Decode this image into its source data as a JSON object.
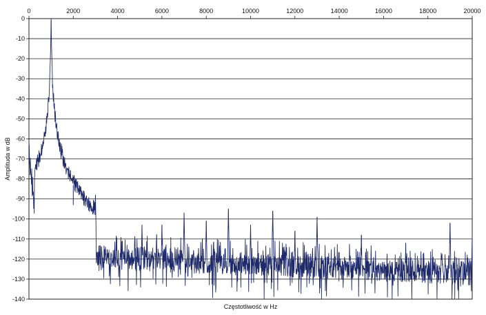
{
  "chart_data": {
    "type": "line",
    "title": "",
    "xlabel": "Częstotliwość w Hz",
    "ylabel": "Amplituda w dB",
    "xlim": [
      0,
      20000
    ],
    "ylim": [
      -140,
      0
    ],
    "x_ticks": [
      0,
      2000,
      4000,
      6000,
      8000,
      10000,
      12000,
      14000,
      16000,
      18000,
      20000
    ],
    "y_ticks": [
      0,
      -10,
      -20,
      -30,
      -40,
      -50,
      -60,
      -70,
      -80,
      -90,
      -100,
      -110,
      -120,
      -130,
      -140
    ],
    "x_axis_position": "top",
    "grid": "horizontal",
    "line_color": "#1f2a6b",
    "peaks": [
      {
        "x": 1000,
        "y": 0
      },
      {
        "x": 2000,
        "y": -83
      },
      {
        "x": 3000,
        "y": -88
      },
      {
        "x": 5100,
        "y": -103
      },
      {
        "x": 6000,
        "y": -103
      },
      {
        "x": 7000,
        "y": -97
      },
      {
        "x": 8000,
        "y": -101
      },
      {
        "x": 9000,
        "y": -95
      },
      {
        "x": 10000,
        "y": -103
      },
      {
        "x": 11000,
        "y": -96
      },
      {
        "x": 12000,
        "y": -106
      },
      {
        "x": 13000,
        "y": -99
      },
      {
        "x": 15000,
        "y": -108
      },
      {
        "x": 17000,
        "y": -112
      },
      {
        "x": 19000,
        "y": -102
      },
      {
        "x": 20000,
        "y": -108
      }
    ],
    "noise_floor": {
      "start": {
        "x": 3000,
        "y": -115
      },
      "end": {
        "x": 20000,
        "y": -123
      },
      "min": -140
    }
  }
}
